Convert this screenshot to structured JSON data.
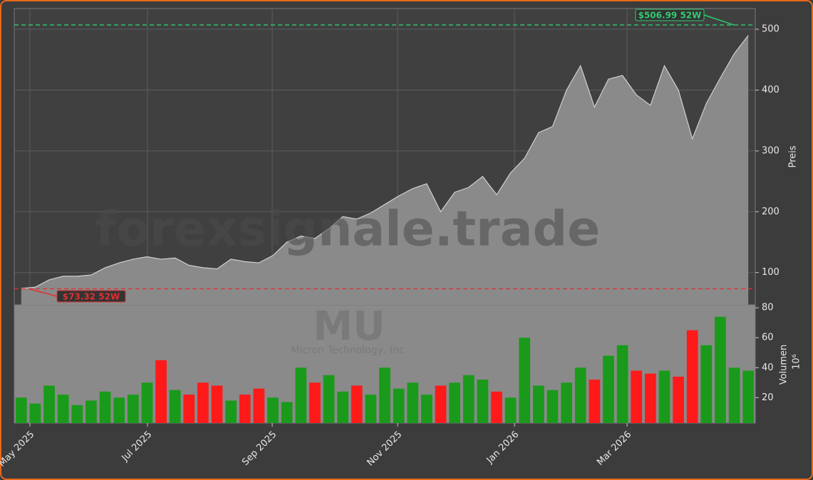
{
  "chart_data": {
    "type": "price-volume",
    "watermark": "forexsignale.trade",
    "symbol": "MU",
    "company": "Micron Technology, Inc",
    "categories": [
      null,
      null,
      null,
      null,
      null,
      null,
      null,
      null,
      null,
      null,
      null,
      null,
      null,
      null,
      null,
      null,
      null,
      null,
      null,
      null,
      null,
      null,
      null,
      null,
      null,
      null,
      null,
      null,
      null,
      null,
      null,
      null,
      null,
      null,
      null,
      null,
      null,
      null,
      null,
      null,
      null,
      null,
      null,
      null,
      null,
      null,
      null,
      null,
      null,
      null,
      null,
      null,
      null
    ],
    "xlim": [
      -0.5,
      52.5
    ],
    "xticks": [
      {
        "value": 0.62,
        "label": "May 2025"
      },
      {
        "value": 9.03,
        "label": "Jul 2025"
      },
      {
        "value": 17.95,
        "label": "Sep 2025"
      },
      {
        "value": 26.92,
        "label": "Nov 2025"
      },
      {
        "value": 35.28,
        "label": "Jan 2026"
      },
      {
        "value": 43.33,
        "label": "Mar 2026"
      }
    ],
    "price": {
      "ylabel": "Preis",
      "ylim": [
        47,
        534
      ],
      "yticks": [
        100,
        200,
        300,
        400,
        500
      ],
      "color": "#8a8a8a",
      "line_color": "#d0d0d0",
      "values": [
        74,
        76,
        88,
        94,
        94,
        96,
        108,
        116,
        122,
        126,
        122,
        124,
        112,
        108,
        106,
        122,
        118,
        116,
        128,
        150,
        160,
        156,
        172,
        192,
        188,
        198,
        212,
        226,
        238,
        246,
        200,
        232,
        240,
        258,
        228,
        264,
        288,
        330,
        340,
        400,
        440,
        372,
        418,
        424,
        392,
        375,
        440,
        400,
        320,
        378,
        420,
        460,
        490
      ]
    },
    "volume": {
      "ylabel": "Volumen",
      "unit": "10⁶",
      "ylim": [
        3,
        82
      ],
      "yticks": [
        20,
        40,
        60,
        80
      ],
      "up_color": "#1a9a1a",
      "down_color": "#ff1a1a",
      "values": [
        20,
        16,
        28,
        22,
        15,
        18,
        24,
        20,
        22,
        30,
        45,
        25,
        22,
        30,
        28,
        18,
        22,
        26,
        20,
        17,
        40,
        30,
        35,
        24,
        28,
        22,
        40,
        26,
        30,
        22,
        28,
        30,
        35,
        32,
        24,
        20,
        60,
        28,
        25,
        30,
        40,
        32,
        48,
        55,
        38,
        36,
        38,
        34,
        65,
        55,
        74,
        40,
        38
      ]
    },
    "hlines": [
      {
        "value": 506.99,
        "label": "$506.99 52W",
        "color": "#2ecc71"
      },
      {
        "value": 73.32,
        "label": "$73.32 52W",
        "color": "#e03030"
      }
    ]
  }
}
